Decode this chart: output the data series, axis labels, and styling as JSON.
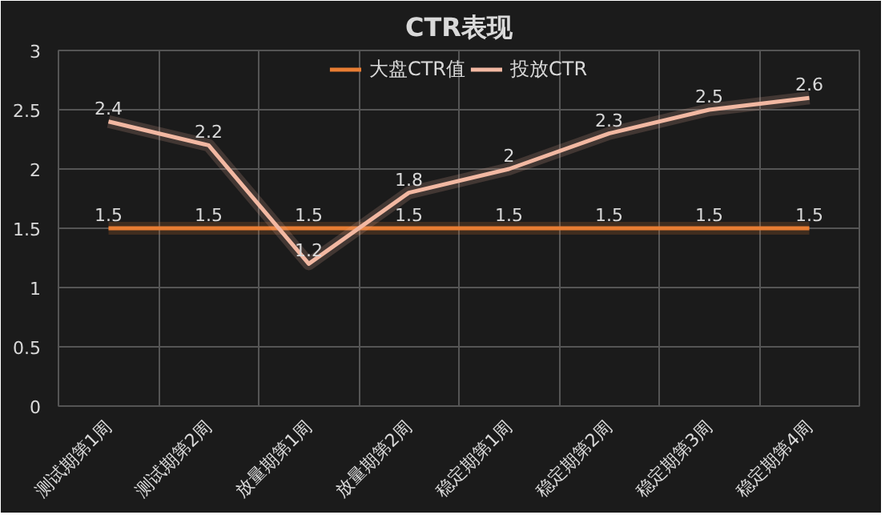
{
  "chart_data": {
    "type": "line",
    "title": "CTR表现",
    "categories": [
      "测试期第1周",
      "测试期第2周",
      "放量期第1周",
      "放量期第2周",
      "稳定期第1周",
      "稳定期第2周",
      "稳定期第3周",
      "稳定期第4周"
    ],
    "series": [
      {
        "name": "大盘CTR值",
        "color": "#e87d33",
        "values": [
          1.5,
          1.5,
          1.5,
          1.5,
          1.5,
          1.5,
          1.5,
          1.5
        ]
      },
      {
        "name": "投放CTR",
        "color": "#f2b8a2",
        "values": [
          2.4,
          2.2,
          1.2,
          1.8,
          2,
          2.3,
          2.5,
          2.6
        ]
      }
    ],
    "ylim": [
      0,
      3
    ],
    "yticks": [
      0,
      0.5,
      1,
      1.5,
      2,
      2.5,
      3
    ],
    "grid": true,
    "legend": "top",
    "data_labels": true,
    "marker": "none",
    "line_style": "solid"
  }
}
